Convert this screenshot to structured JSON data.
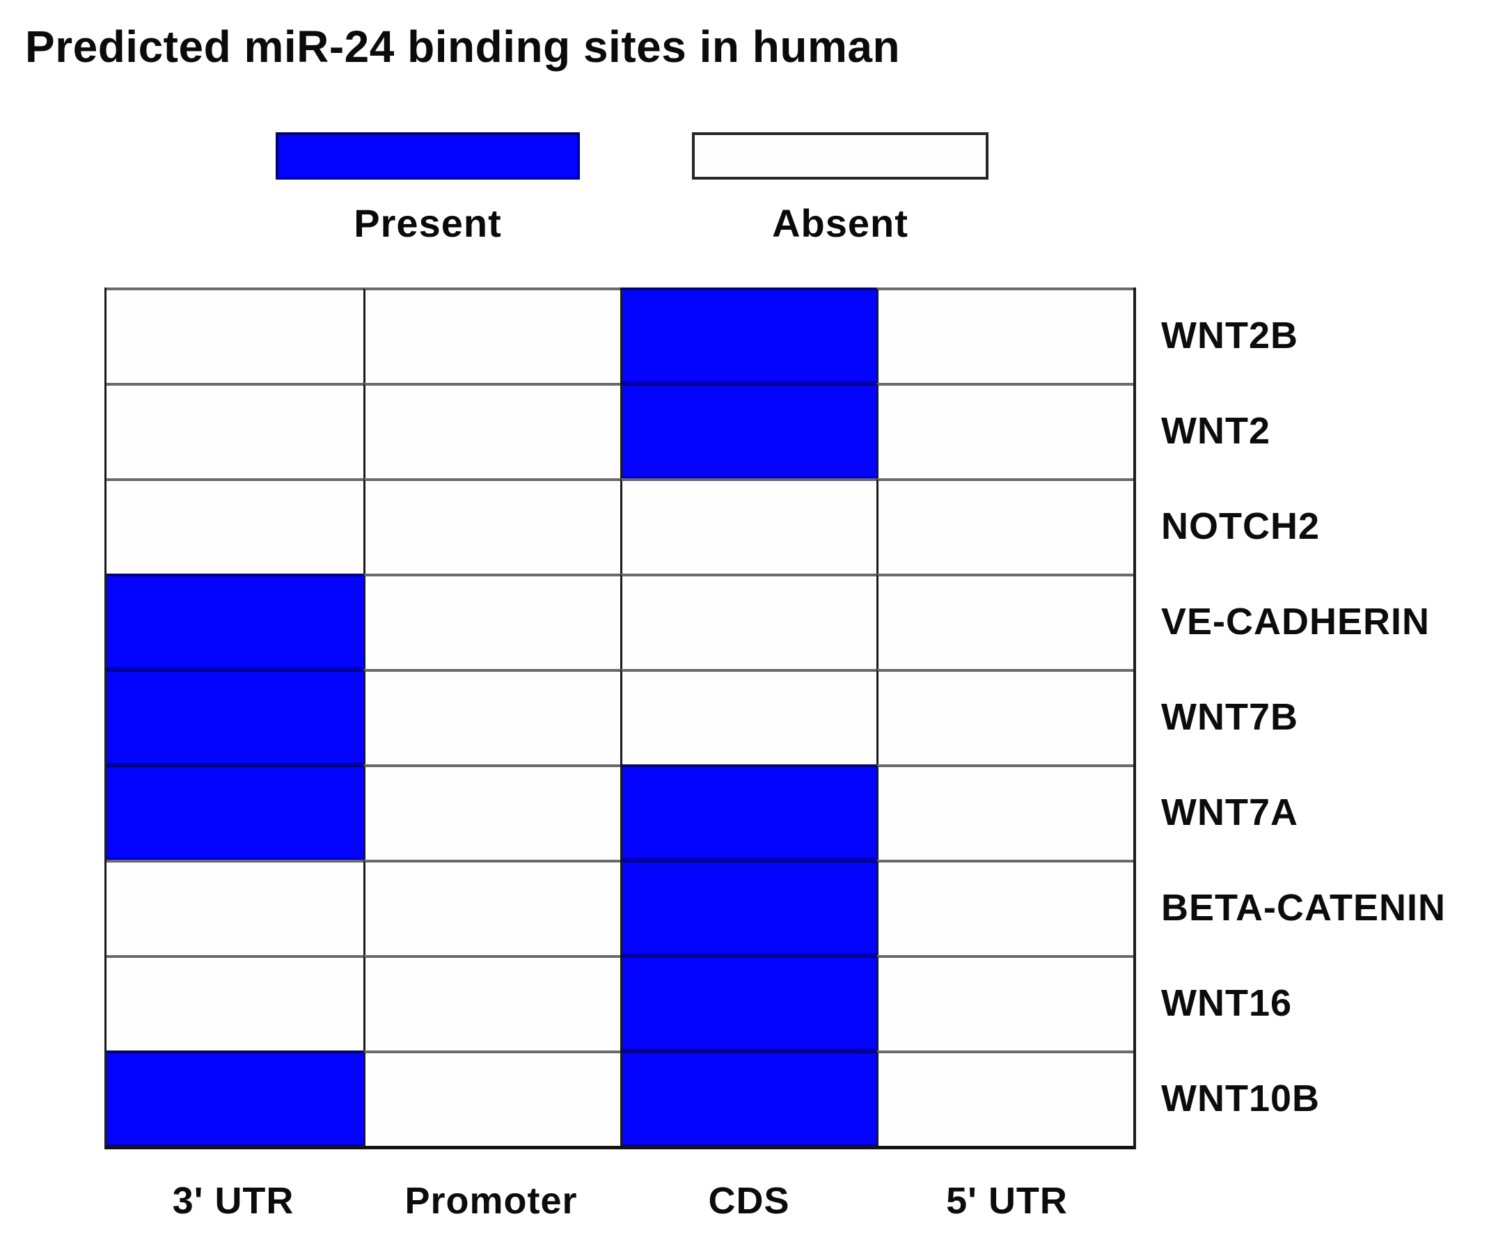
{
  "title": "Predicted miR-24 binding sites in human",
  "legend": {
    "present_label": "Present",
    "absent_label": "Absent",
    "present_color": "#0303fe",
    "present_border_color": "#00008b",
    "absent_color": "#ffffff",
    "absent_border_color": "#262626"
  },
  "chart_data": {
    "type": "heatmap",
    "title": "Predicted miR-24 binding sites in human",
    "columns": [
      "3' UTR",
      "Promoter",
      "CDS",
      "5' UTR"
    ],
    "rows": [
      "WNT2B",
      "WNT2",
      "NOTCH2",
      "VE-CADHERIN",
      "WNT7B",
      "WNT7A",
      "BETA-CATENIN",
      "WNT16",
      "WNT10B"
    ],
    "values": [
      [
        0,
        0,
        1,
        0
      ],
      [
        0,
        0,
        1,
        0
      ],
      [
        0,
        0,
        0,
        0
      ],
      [
        1,
        0,
        0,
        0
      ],
      [
        1,
        0,
        0,
        0
      ],
      [
        1,
        0,
        1,
        0
      ],
      [
        0,
        0,
        1,
        0
      ],
      [
        0,
        0,
        1,
        0
      ],
      [
        1,
        0,
        1,
        0
      ]
    ],
    "value_meaning": {
      "1": "Present",
      "0": "Absent"
    },
    "present_color": "#0303fe",
    "absent_color": "#ffffff",
    "legend_position": "top",
    "grid": true
  }
}
